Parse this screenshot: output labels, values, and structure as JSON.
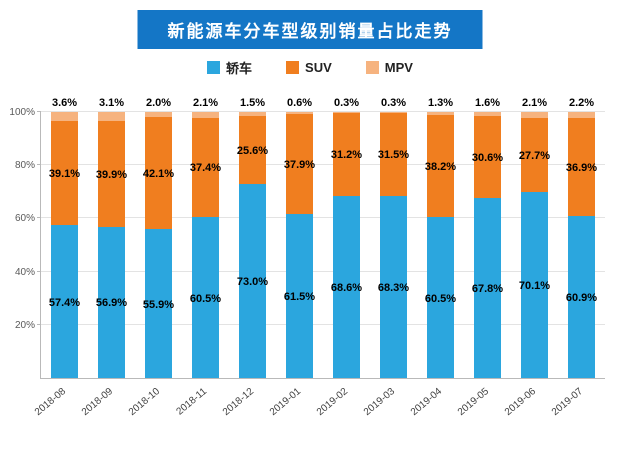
{
  "title": "新能源车分车型级别销量占比走势",
  "colors": {
    "title_bg": "#1476c6",
    "title_text": "#ffffff",
    "grid": "#e3e3e3",
    "axis": "#b9b9b9",
    "tick_text": "#595959",
    "label_text": "#000000",
    "xtick_text": "#404040"
  },
  "legend": {
    "items": [
      "轿车",
      "SUV",
      "MPV"
    ]
  },
  "chart_data": {
    "type": "bar",
    "stacked": true,
    "title": "新能源车分车型级别销量占比走势",
    "categories": [
      "2018-08",
      "2018-09",
      "2018-10",
      "2018-11",
      "2018-12",
      "2019-01",
      "2019-02",
      "2019-03",
      "2019-04",
      "2019-05",
      "2019-06",
      "2019-07"
    ],
    "series": [
      {
        "name": "轿车",
        "color": "#2BA6DE",
        "values": [
          57.4,
          56.9,
          55.9,
          60.5,
          73.0,
          61.5,
          68.6,
          68.3,
          60.5,
          67.8,
          70.1,
          60.9
        ]
      },
      {
        "name": "SUV",
        "color": "#F07E1F",
        "values": [
          39.1,
          39.9,
          42.1,
          37.4,
          25.6,
          37.9,
          31.2,
          31.5,
          38.2,
          30.6,
          27.7,
          36.9
        ]
      },
      {
        "name": "MPV",
        "color": "#F6B37F",
        "values": [
          3.6,
          3.1,
          2.0,
          2.1,
          1.5,
          0.6,
          0.3,
          0.3,
          1.3,
          1.6,
          2.1,
          2.2
        ]
      }
    ],
    "value_suffix": "%",
    "ylim": [
      0,
      100
    ],
    "yticks": [
      {
        "value": 20,
        "label": "20%"
      },
      {
        "value": 40,
        "label": "40%"
      },
      {
        "value": 60,
        "label": "60%"
      },
      {
        "value": 80,
        "label": "80%"
      },
      {
        "value": 100,
        "label": "100%"
      }
    ],
    "grid": true,
    "legend_position": "top"
  }
}
